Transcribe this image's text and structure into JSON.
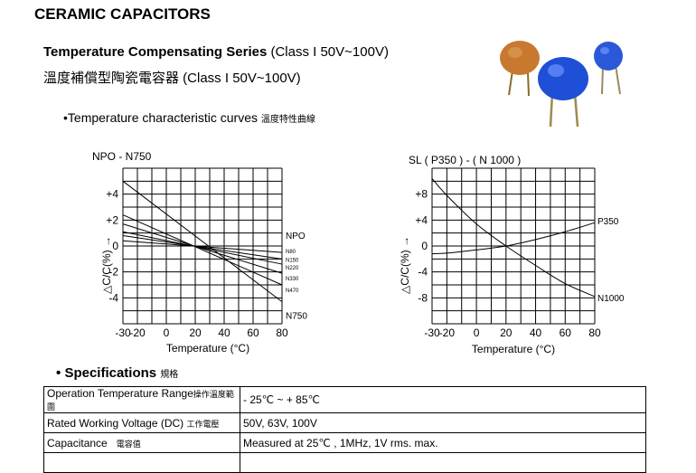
{
  "header": {
    "title": "CERAMIC CAPACITORS",
    "series_en_bold": "Temperature Compensating Series",
    "series_en_class": " (Class I 50V~100V)",
    "series_zh": "溫度補償型陶瓷電容器",
    "series_zh_class": " (Class I 50V~100V)"
  },
  "section_curves": {
    "bullet": "•",
    "label": "Temperature characteristic curves",
    "label_zh": "溫度特性曲線"
  },
  "section_spec": {
    "bullet": "•",
    "label": "Specifications",
    "label_zh": "規格"
  },
  "chart_data": [
    {
      "type": "line",
      "title": "NPO - N750",
      "xlabel": "Temperature (°C)",
      "ylabel": "△C/C(%) →",
      "xlim": [
        -30,
        80
      ],
      "ylim": [
        -6,
        6
      ],
      "x_ticks": [
        "-30",
        "-20",
        "0",
        "20",
        "40",
        "60",
        "80"
      ],
      "y_ticks": [
        "+4",
        "+2",
        "0",
        "-2",
        "-4"
      ],
      "grid": true,
      "series": [
        {
          "name": "NPO",
          "x": [
            -30,
            80
          ],
          "y": [
            0,
            0
          ]
        },
        {
          "name": "N80",
          "x": [
            -30,
            80
          ],
          "y": [
            0.4,
            -0.5
          ]
        },
        {
          "name": "N150",
          "x": [
            -30,
            80
          ],
          "y": [
            0.8,
            -1.0
          ]
        },
        {
          "name": "N220",
          "x": [
            -30,
            80
          ],
          "y": [
            1.1,
            -1.4
          ]
        },
        {
          "name": "N330",
          "x": [
            -30,
            80
          ],
          "y": [
            1.7,
            -2.1
          ]
        },
        {
          "name": "N470",
          "x": [
            -30,
            80
          ],
          "y": [
            2.4,
            -3.0
          ]
        },
        {
          "name": "N750",
          "x": [
            -30,
            80
          ],
          "y": [
            5.0,
            -4.3
          ]
        }
      ]
    },
    {
      "type": "line",
      "title": "SL ( P350 ) - ( N 1000 )",
      "xlabel": "Temperature (°C)",
      "ylabel": "△C/C(%) →",
      "xlim": [
        -30,
        80
      ],
      "ylim": [
        -12,
        12
      ],
      "x_ticks": [
        "-30",
        "-20",
        "0",
        "20",
        "40",
        "60",
        "80"
      ],
      "y_ticks": [
        "+8",
        "+4",
        "0",
        "-4",
        "-8"
      ],
      "grid": true,
      "series": [
        {
          "name": "P350",
          "x": [
            -30,
            -20,
            0,
            20,
            40,
            60,
            80
          ],
          "y": [
            -1.2,
            -1.1,
            -0.6,
            0,
            1.0,
            2.2,
            3.6
          ]
        },
        {
          "name": "N1000",
          "x": [
            -30,
            -20,
            0,
            20,
            40,
            60,
            80
          ],
          "y": [
            10.4,
            7.8,
            3.4,
            0,
            -3.0,
            -5.8,
            -7.8
          ]
        }
      ]
    }
  ],
  "specs": {
    "rows": [
      {
        "label": "Operation Temperature Range",
        "label_zh": "操作溫度範圍",
        "value": "- 25℃  ~ + 85℃"
      },
      {
        "label": "Rated Working Voltage (DC)",
        "label_zh": "工作電壓",
        "value": "50V, 63V, 100V"
      },
      {
        "label": "Capacitance",
        "label_zh": "電容值",
        "value": "Measured at 25℃ , 1MHz, 1V rms. max."
      }
    ]
  }
}
